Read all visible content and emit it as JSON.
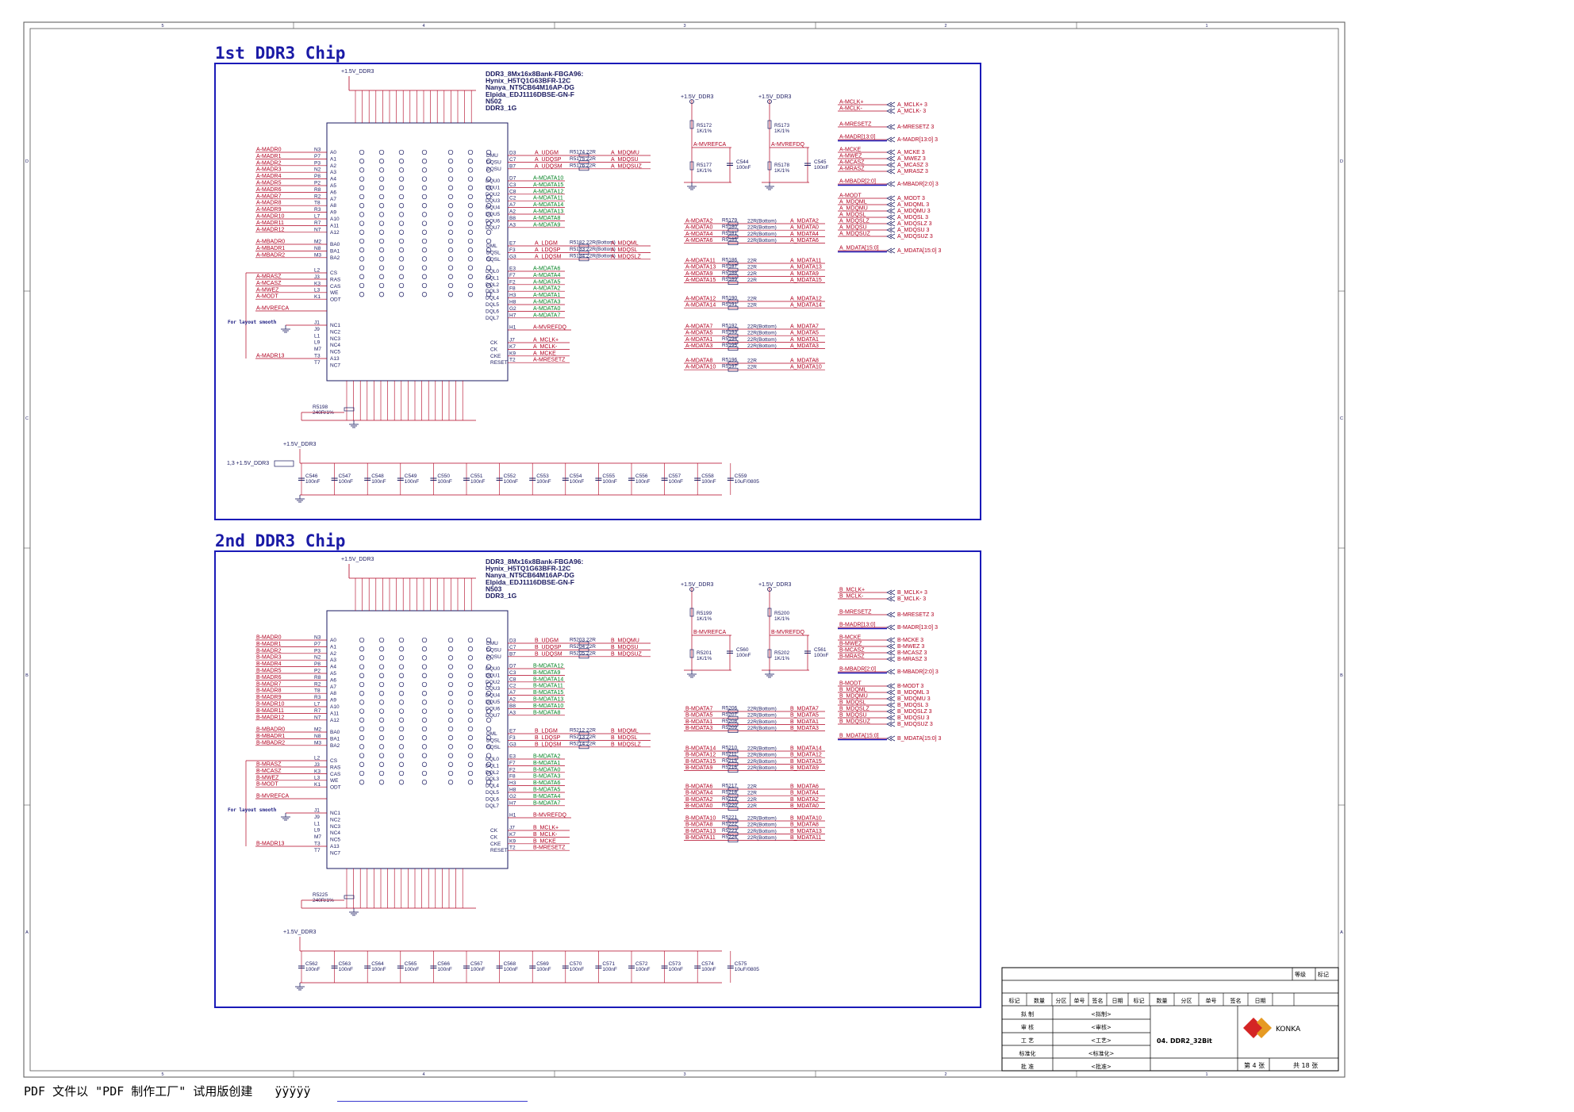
{
  "frame": {
    "cols": [
      "5",
      "4",
      "3",
      "2",
      "1"
    ],
    "rows": [
      "D",
      "C",
      "B",
      "A"
    ]
  },
  "sections": [
    {
      "title": "1st DDR3 Chip",
      "part": [
        "DDR3_8Mx16x8Bank-FBGA96:",
        "Hynix_H5TQ1G63BFR-12C",
        "Nanya_NT5CB64M16AP-DG",
        "Elpida_EDJ1116DBSE-GN-F",
        "N502",
        "DDR3_1G"
      ],
      "power": "+1.5V_DDR3",
      "left_nets": [
        "A-MADR0",
        "A-MADR1",
        "A-MADR2",
        "A-MADR3",
        "A-MADR4",
        "A-MADR5",
        "A-MADR6",
        "A-MADR7",
        "A-MADR8",
        "A-MADR9",
        "A-MADR10",
        "A-MADR11",
        "A-MADR12"
      ],
      "left_pins": [
        "N3",
        "P7",
        "P3",
        "N2",
        "P8",
        "P2",
        "R8",
        "R2",
        "T8",
        "R3",
        "L7",
        "R7",
        "N7"
      ],
      "left_sig": [
        "A0",
        "A1",
        "A2",
        "A3",
        "A4",
        "A5",
        "A6",
        "A7",
        "A8",
        "A9",
        "A10",
        "A11",
        "A12"
      ],
      "ba_nets": [
        "A-MBADR0",
        "A-MBADR1",
        "A-MBADR2"
      ],
      "ba_pins": [
        "M2",
        "N8",
        "M3"
      ],
      "ba_sig": [
        "BA0",
        "BA1",
        "BA2"
      ],
      "ctl_nets": [
        "A-MRASZ",
        "A-MCASZ",
        "A-MWEZ",
        "A-MODT"
      ],
      "ctl_pins": [
        "L2",
        "J3",
        "K3",
        "L3",
        "K1"
      ],
      "ctl_sig": [
        "CS",
        "RAS",
        "CAS",
        "WE",
        "ODT"
      ],
      "vref_net": "A-MVREFCA",
      "nc_pins": [
        "J1",
        "J9",
        "L1",
        "L9",
        "M7",
        "T3",
        "T7"
      ],
      "nc_sig": [
        "NC1",
        "NC2",
        "NC3",
        "NC4",
        "NC5",
        "A13",
        "NC7"
      ],
      "a13_net": "A-MADR13",
      "layout_note": "For layout smooth",
      "dqs_upper": [
        [
          "D3",
          "A_UDGM",
          "R5174 22R",
          "A_MDQMU"
        ],
        [
          "C7",
          "A_UDQSP",
          "R5175 22R",
          "A_MDQSU"
        ],
        [
          "B7",
          "A_UDQSM",
          "R5176 22R",
          "A_MDQSUZ"
        ]
      ],
      "dqs_upper_sig": [
        "DMU",
        "DQSU",
        "DQSU"
      ],
      "dqu_pins": [
        "D7",
        "C3",
        "C8",
        "C2",
        "A7",
        "A2",
        "B8",
        "A3"
      ],
      "dqu_sig": [
        "DQU0",
        "DQU1",
        "DQU2",
        "DQU3",
        "DQU4",
        "DQU5",
        "DQU6",
        "DQU7"
      ],
      "dqu_nets": [
        "A-MDATA10",
        "A-MDATA15",
        "A-MDATA12",
        "A-MDATA11",
        "A-MDATA14",
        "A-MDATA13",
        "A-MDATA8",
        "A-MDATA9"
      ],
      "dqs_lower": [
        [
          "E7",
          "A_LDGM",
          "R5182 22R(Bottom)",
          "A_MDQML"
        ],
        [
          "F3",
          "A_LDQSP",
          "R5183 22R(Bottom)",
          "A_MDQSL"
        ],
        [
          "G3",
          "A_LDQSM",
          "R5184 22R(Bottom)",
          "A_MDQSLZ"
        ]
      ],
      "dqs_lower_sig": [
        "DML",
        "DQSL",
        "DQSL"
      ],
      "dql_pins": [
        "E3",
        "F7",
        "F2",
        "F8",
        "H3",
        "H8",
        "G2",
        "H7"
      ],
      "dql_sig": [
        "DQL0",
        "DQL1",
        "DQL2",
        "DQL3",
        "DQL4",
        "DQL5",
        "DQL6",
        "DQL7"
      ],
      "dql_nets": [
        "A-MDATA6",
        "A-MDATA4",
        "A-MDATA5",
        "A-MDATA2",
        "A-MDATA1",
        "A-MDATA3",
        "A-MDATA0",
        "A-MDATA7"
      ],
      "vrefdq_pin": "H1",
      "vrefdq_net": "A-MVREFDQ",
      "ck_rows": [
        [
          "J7",
          "A_MCLK+",
          "CK"
        ],
        [
          "K7",
          "A_MCLK-",
          "CK"
        ],
        [
          "K9",
          "A_MCKE",
          "CKE"
        ],
        [
          "T2",
          "A-MRESETZ",
          "RESET"
        ]
      ],
      "zq": "R5198",
      "zq_val": "240R/1%",
      "vref_res": [
        [
          "R5172",
          "1K/1%"
        ],
        [
          "R5177",
          "1K/1%"
        ],
        [
          "R5173",
          "1K/1%"
        ],
        [
          "R5178",
          "1K/1%"
        ]
      ],
      "vref_caps": [
        [
          "C544",
          "100nF"
        ],
        [
          "C545",
          "100nF"
        ]
      ],
      "vref_nets": [
        "A-MVREFCA",
        "A-MVREFDQ"
      ],
      "series_r": [
        [
          "A-MDATA2",
          "R5179",
          "22R(Bottom)",
          "A_MDATA2"
        ],
        [
          "A-MDATA0",
          "R5180",
          "22R(Bottom)",
          "A_MDATA0"
        ],
        [
          "A-MDATA4",
          "R5181",
          "22R(Bottom)",
          "A_MDATA4"
        ],
        [
          "A-MDATA6",
          "R5185",
          "22R(Bottom)",
          "A_MDATA6"
        ],
        [
          "A-MDATA11",
          "R5186",
          "22R",
          "A_MDATA11"
        ],
        [
          "A-MDATA13",
          "R5187",
          "22R",
          "A_MDATA13"
        ],
        [
          "A-MDATA9",
          "R5188",
          "22R",
          "A_MDATA9"
        ],
        [
          "A-MDATA15",
          "R5189",
          "22R",
          "A_MDATA15"
        ],
        [
          "A-MDATA12",
          "R5190",
          "22R",
          "A_MDATA12"
        ],
        [
          "A-MDATA14",
          "R5191",
          "22R",
          "A_MDATA14"
        ],
        [
          "A-MDATA7",
          "R5192",
          "22R(Bottom)",
          "A_MDATA7"
        ],
        [
          "A-MDATA5",
          "R5193",
          "22R(Bottom)",
          "A_MDATA5"
        ],
        [
          "A-MDATA1",
          "R5194",
          "22R(Bottom)",
          "A_MDATA1"
        ],
        [
          "A-MDATA3",
          "R5195",
          "22R(Bottom)",
          "A_MDATA3"
        ],
        [
          "A-MDATA8",
          "R5196",
          "22R",
          "A_MDATA8"
        ],
        [
          "A-MDATA10",
          "R5197",
          "22R",
          "A_MDATA10"
        ]
      ],
      "ports": [
        [
          "A-MCLK+",
          "A_MCLK+ 3"
        ],
        [
          "A-MCLK-",
          "A_MCLK- 3"
        ],
        [
          "A-MRESETZ",
          "A-MRESETZ 3"
        ],
        [
          "A-MADR[13:0]",
          "A-MADR[13:0] 3"
        ],
        [
          "A-MCKE",
          "A_MCKE 3"
        ],
        [
          "A-MWEZ",
          "A_MWEZ 3"
        ],
        [
          "A-MCASZ",
          "A_MCASZ 3"
        ],
        [
          "A-MRASZ",
          "A_MRASZ 3"
        ],
        [
          "A-MBADR[2:0]",
          "A-MBADR[2:0] 3"
        ],
        [
          "A-MODT",
          "A_MODT 3"
        ],
        [
          "A_MDQML",
          "A_MDQML 3"
        ],
        [
          "A_MDQMU",
          "A_MDQMU 3"
        ],
        [
          "A_MDQSL",
          "A_MDQSL 3"
        ],
        [
          "A_MDQSLZ",
          "A_MDQSLZ 3"
        ],
        [
          "A_MDQSU",
          "A_MDQSU 3"
        ],
        [
          "A_MDQSUZ",
          "A_MDQSUZ 3"
        ],
        [
          "A_MDATA[15:0]",
          "A_MDATA[15:0] 3"
        ]
      ],
      "decap": [
        [
          "C546",
          "100nF"
        ],
        [
          "C547",
          "100nF"
        ],
        [
          "C548",
          "100nF"
        ],
        [
          "C549",
          "100nF"
        ],
        [
          "C550",
          "100nF"
        ],
        [
          "C551",
          "100nF"
        ],
        [
          "C552",
          "100nF"
        ],
        [
          "C553",
          "100nF"
        ],
        [
          "C554",
          "100nF"
        ],
        [
          "C555",
          "100nF"
        ],
        [
          "C556",
          "100nF"
        ],
        [
          "C557",
          "100nF"
        ],
        [
          "C558",
          "100nF"
        ],
        [
          "C559",
          "10uF/0805"
        ]
      ],
      "decap_in": "1,3  +1.5V_DDR3"
    },
    {
      "title": "2nd DDR3 Chip",
      "part": [
        "DDR3_8Mx16x8Bank-FBGA96:",
        "Hynix_H5TQ1G63BFR-12C",
        "Nanya_NT5CB64M16AP-DG",
        "Elpida_EDJ1116DBSE-GN-F",
        "N503",
        "DDR3_1G"
      ],
      "power": "+1.5V_DDR3",
      "left_nets": [
        "B-MADR0",
        "B-MADR1",
        "B-MADR2",
        "B-MADR3",
        "B-MADR4",
        "B-MADR5",
        "B-MADR6",
        "B-MADR7",
        "B-MADR8",
        "B-MADR9",
        "B-MADR10",
        "B-MADR11",
        "B-MADR12"
      ],
      "left_pins": [
        "N3",
        "P7",
        "P3",
        "N2",
        "P8",
        "P2",
        "R8",
        "R2",
        "T8",
        "R3",
        "L7",
        "R7",
        "N7"
      ],
      "left_sig": [
        "A0",
        "A1",
        "A2",
        "A3",
        "A4",
        "A5",
        "A6",
        "A7",
        "A8",
        "A9",
        "A10",
        "A11",
        "A12"
      ],
      "ba_nets": [
        "B-MBADR0",
        "B-MBADR1",
        "B-MBADR2"
      ],
      "ba_pins": [
        "M2",
        "N8",
        "M3"
      ],
      "ba_sig": [
        "BA0",
        "BA1",
        "BA2"
      ],
      "ctl_nets": [
        "B-MRASZ",
        "B-MCASZ",
        "B-MWEZ",
        "B-MODT"
      ],
      "ctl_pins": [
        "L2",
        "J3",
        "K3",
        "L3",
        "K1"
      ],
      "ctl_sig": [
        "CS",
        "RAS",
        "CAS",
        "WE",
        "ODT"
      ],
      "vref_net": "B-MVREFCA",
      "nc_pins": [
        "J1",
        "J9",
        "L1",
        "L9",
        "M7",
        "T3",
        "T7"
      ],
      "nc_sig": [
        "NC1",
        "NC2",
        "NC3",
        "NC4",
        "NC5",
        "A13",
        "NC7"
      ],
      "a13_net": "B-MADR13",
      "layout_note": "For layout smooth",
      "dqs_upper": [
        [
          "D3",
          "B_UDGM",
          "R5203 22R",
          "B_MDQMU"
        ],
        [
          "C7",
          "B_UDQSP",
          "R5204 22R",
          "B_MDQSU"
        ],
        [
          "B7",
          "B_UDQSM",
          "R5205 22R",
          "B_MDQSUZ"
        ]
      ],
      "dqs_upper_sig": [
        "DMU",
        "DQSU",
        "DQSU"
      ],
      "dqu_pins": [
        "D7",
        "C3",
        "C8",
        "C2",
        "A7",
        "A2",
        "B8",
        "A3"
      ],
      "dqu_sig": [
        "DQU0",
        "DQU1",
        "DQU2",
        "DQU3",
        "DQU4",
        "DQU5",
        "DQU6",
        "DQU7"
      ],
      "dqu_nets": [
        "B-MDATA12",
        "B-MDATA9",
        "B-MDATA14",
        "B-MDATA11",
        "B-MDATA15",
        "B-MDATA13",
        "B-MDATA10",
        "B-MDATA8"
      ],
      "dqs_lower": [
        [
          "E7",
          "B_LDGM",
          "R5212 22R",
          "B_MDQML"
        ],
        [
          "F3",
          "B_LDQSP",
          "R5213 22R",
          "B_MDQSL"
        ],
        [
          "G3",
          "B_LDQSM",
          "R5214 22R",
          "B_MDQSLZ"
        ]
      ],
      "dqs_lower_sig": [
        "DML",
        "DQSL",
        "DQSL"
      ],
      "dql_pins": [
        "E3",
        "F7",
        "F2",
        "F8",
        "H3",
        "H8",
        "G2",
        "H7"
      ],
      "dql_sig": [
        "DQL0",
        "DQL1",
        "DQL2",
        "DQL3",
        "DQL4",
        "DQL5",
        "DQL6",
        "DQL7"
      ],
      "dql_nets": [
        "B-MDATA2",
        "B-MDATA1",
        "B-MDATA0",
        "B-MDATA3",
        "B-MDATA6",
        "B-MDATA5",
        "B-MDATA4",
        "B-MDATA7"
      ],
      "vrefdq_pin": "H1",
      "vrefdq_net": "B-MVREFDQ",
      "ck_rows": [
        [
          "J7",
          "B_MCLK+",
          "CK"
        ],
        [
          "K7",
          "B_MCLK-",
          "CK"
        ],
        [
          "K9",
          "B_MCKE",
          "CKE"
        ],
        [
          "T2",
          "B-MRESETZ",
          "RESET"
        ]
      ],
      "zq": "R5225",
      "zq_val": "240R/1%",
      "vref_res": [
        [
          "R5199",
          "1K/1%"
        ],
        [
          "R5201",
          "1K/1%"
        ],
        [
          "R5200",
          "1K/1%"
        ],
        [
          "R5202",
          "1K/1%"
        ]
      ],
      "vref_caps": [
        [
          "C560",
          "100nF"
        ],
        [
          "C561",
          "100nF"
        ]
      ],
      "vref_nets": [
        "B-MVREFCA",
        "B-MVREFDQ"
      ],
      "series_r": [
        [
          "B-MDATA7",
          "R5206",
          "22R(Bottom)",
          "B_MDATA7"
        ],
        [
          "B-MDATA5",
          "R5207",
          "22R(Bottom)",
          "B_MDATA5"
        ],
        [
          "B-MDATA1",
          "R5208",
          "22R(Bottom)",
          "B_MDATA1"
        ],
        [
          "B-MDATA3",
          "R5209",
          "22R(Bottom)",
          "B_MDATA3"
        ],
        [
          "B-MDATA14",
          "R5210",
          "22R(Bottom)",
          "B_MDATA14"
        ],
        [
          "B-MDATA12",
          "R5211",
          "22R(Bottom)",
          "B_MDATA12"
        ],
        [
          "B-MDATA15",
          "R5215",
          "22R(Bottom)",
          "B_MDATA15"
        ],
        [
          "B-MDATA9",
          "R5216",
          "22R(Bottom)",
          "B_MDATA9"
        ],
        [
          "B-MDATA6",
          "R5217",
          "22R",
          "B_MDATA6"
        ],
        [
          "B-MDATA4",
          "R5218",
          "22R",
          "B_MDATA4"
        ],
        [
          "B-MDATA2",
          "R5219",
          "22R",
          "B_MDATA2"
        ],
        [
          "B-MDATA0",
          "R5220",
          "22R",
          "B_MDATA0"
        ],
        [
          "B-MDATA10",
          "R5221",
          "22R(Bottom)",
          "B_MDATA10"
        ],
        [
          "B-MDATA8",
          "R5222",
          "22R(Bottom)",
          "B_MDATA8"
        ],
        [
          "B-MDATA13",
          "R5223",
          "22R(Bottom)",
          "B_MDATA13"
        ],
        [
          "B-MDATA11",
          "R5224",
          "22R(Bottom)",
          "B_MDATA11"
        ]
      ],
      "ports": [
        [
          "B_MCLK+",
          "B_MCLK+ 3"
        ],
        [
          "B_MCLK-",
          "B_MCLK- 3"
        ],
        [
          "B-MRESETZ",
          "B-MRESETZ 3"
        ],
        [
          "B-MADR[13:0]",
          "B-MADR[13:0] 3"
        ],
        [
          "B-MCKE",
          "B-MCKE 3"
        ],
        [
          "B-MWEZ",
          "B-MWEZ 3"
        ],
        [
          "B-MCASZ",
          "B-MCASZ 3"
        ],
        [
          "B-MRASZ",
          "B-MRASZ 3"
        ],
        [
          "B-MBADR[2:0]",
          "B-MBADR[2:0] 3"
        ],
        [
          "B-MODT",
          "B-MODT 3"
        ],
        [
          "B_MDQML",
          "B_MDQML 3"
        ],
        [
          "B_MDQMU",
          "B_MDQMU 3"
        ],
        [
          "B_MDQSL",
          "B_MDQSL 3"
        ],
        [
          "B_MDQSLZ",
          "B_MDQSLZ 3"
        ],
        [
          "B_MDQSU",
          "B_MDQSU 3"
        ],
        [
          "B_MDQSUZ",
          "B_MDQSUZ 3"
        ],
        [
          "B_MDATA[15:0]",
          "B_MDATA[15:0] 3"
        ]
      ],
      "decap": [
        [
          "C562",
          "100nF"
        ],
        [
          "C563",
          "100nF"
        ],
        [
          "C564",
          "100nF"
        ],
        [
          "C565",
          "100nF"
        ],
        [
          "C566",
          "100nF"
        ],
        [
          "C567",
          "100nF"
        ],
        [
          "C568",
          "100nF"
        ],
        [
          "C569",
          "100nF"
        ],
        [
          "C570",
          "100nF"
        ],
        [
          "C571",
          "100nF"
        ],
        [
          "C572",
          "100nF"
        ],
        [
          "C573",
          "100nF"
        ],
        [
          "C574",
          "100nF"
        ],
        [
          "C575",
          "10uF/0805"
        ]
      ],
      "decap_in": ""
    }
  ],
  "title_block": {
    "grade_label": "等级",
    "mark_label": "标记",
    "headers": [
      "标记",
      "数量",
      "分区",
      "单号",
      "签名",
      "日期",
      "标记",
      "数量",
      "分区",
      "单号",
      "签名",
      "日期"
    ],
    "roles": [
      [
        "拟  制",
        "<拟制>"
      ],
      [
        "审  核",
        "<审核>"
      ],
      [
        "工  艺",
        "<工艺>"
      ],
      [
        "标准化",
        "<标准化>"
      ],
      [
        "批  准",
        "<批准>"
      ]
    ],
    "sheet_title": "04. DDR2_32Bit",
    "company": "KONKA",
    "sheet_no": "第 4 张",
    "sheet_total": "共 18 张"
  },
  "footer": {
    "text": "PDF 文件以 \"PDF 制作工厂\" 试用版创建",
    "link": "ÿÿÿÿÿ"
  },
  "colors": {
    "border": "#1a1ab8",
    "wire": "#b00020",
    "part": "#1a1a60",
    "green_net": "#008020"
  }
}
